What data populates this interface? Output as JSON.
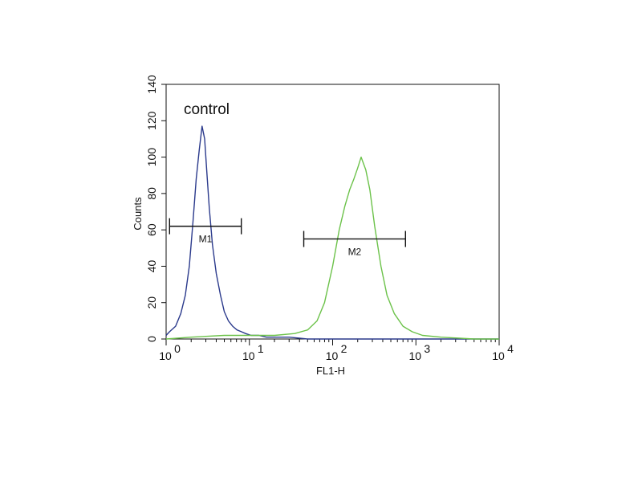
{
  "chart_data": {
    "type": "line",
    "title": "",
    "xlabel": "FL1-H",
    "ylabel": "Counts",
    "xscale": "log",
    "xlim": [
      1,
      10000
    ],
    "ylim": [
      0,
      140
    ],
    "x_ticks": [
      1,
      10,
      100,
      1000,
      10000
    ],
    "x_tick_labels": [
      {
        "base": "10",
        "exp": "0"
      },
      {
        "base": "10",
        "exp": "1"
      },
      {
        "base": "10",
        "exp": "2"
      },
      {
        "base": "10",
        "exp": "3"
      },
      {
        "base": "10",
        "exp": "4"
      }
    ],
    "y_ticks": [
      0,
      20,
      40,
      60,
      80,
      100,
      120,
      140
    ],
    "grid": false,
    "annotation": "control",
    "series": [
      {
        "color": "#2b3a8c",
        "x": [
          1.0,
          1.1,
          1.3,
          1.5,
          1.7,
          1.9,
          2.1,
          2.3,
          2.5,
          2.7,
          2.9,
          3.1,
          3.3,
          3.6,
          4.0,
          4.5,
          5.0,
          5.6,
          6.3,
          7.1,
          8.0,
          9.0,
          10.5,
          13,
          16,
          20,
          30,
          50,
          100,
          1000,
          10000
        ],
        "y": [
          2,
          4,
          7,
          14,
          24,
          40,
          64,
          88,
          104,
          117,
          110,
          90,
          72,
          52,
          36,
          24,
          15,
          10,
          7,
          5,
          4,
          3,
          2,
          2,
          1,
          1,
          1,
          0,
          0,
          0,
          0
        ]
      },
      {
        "color": "#6cc24a",
        "x": [
          1.0,
          2.0,
          5.0,
          10,
          20,
          35,
          50,
          65,
          80,
          100,
          120,
          140,
          160,
          180,
          200,
          220,
          250,
          280,
          320,
          380,
          450,
          550,
          700,
          900,
          1200,
          2000,
          5000,
          10000
        ],
        "y": [
          0,
          1,
          2,
          2,
          2,
          3,
          5,
          10,
          20,
          40,
          60,
          73,
          82,
          88,
          94,
          100,
          93,
          82,
          62,
          40,
          24,
          14,
          7,
          4,
          2,
          1,
          0,
          0
        ]
      }
    ],
    "gates": [
      {
        "label": "M1",
        "x_start": 1.1,
        "x_end": 8.0,
        "y": 62
      },
      {
        "label": "M2",
        "x_start": 45,
        "x_end": 750,
        "y": 55
      }
    ]
  }
}
